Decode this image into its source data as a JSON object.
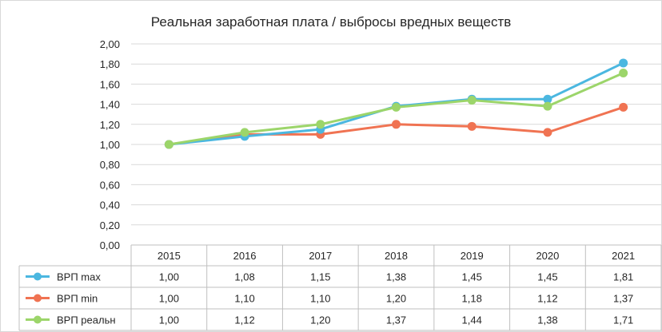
{
  "chart_data": {
    "type": "line",
    "title": "Реальная заработная плата / выбросы вредных веществ",
    "categories": [
      "2015",
      "2016",
      "2017",
      "2018",
      "2019",
      "2020",
      "2021"
    ],
    "ylim": [
      0,
      2
    ],
    "ytick_labels": [
      "0,00",
      "0,20",
      "0,40",
      "0,60",
      "0,80",
      "1,00",
      "1,20",
      "1,40",
      "1,60",
      "1,80",
      "2,00"
    ],
    "grid": true,
    "legend": "data-table",
    "series": [
      {
        "name": "ВРП max",
        "color": "#4bb7e0",
        "values": [
          1.0,
          1.08,
          1.15,
          1.38,
          1.45,
          1.45,
          1.81
        ],
        "labels": [
          "1,00",
          "1,08",
          "1,15",
          "1,38",
          "1,45",
          "1,45",
          "1,81"
        ]
      },
      {
        "name": "ВРП min",
        "color": "#f07352",
        "values": [
          1.0,
          1.1,
          1.1,
          1.2,
          1.18,
          1.12,
          1.37
        ],
        "labels": [
          "1,00",
          "1,10",
          "1,10",
          "1,20",
          "1,18",
          "1,12",
          "1,37"
        ]
      },
      {
        "name": "ВРП реальн",
        "color": "#9cd56a",
        "values": [
          1.0,
          1.12,
          1.2,
          1.37,
          1.44,
          1.38,
          1.71
        ],
        "labels": [
          "1,00",
          "1,12",
          "1,20",
          "1,37",
          "1,44",
          "1,38",
          "1,71"
        ]
      }
    ]
  }
}
